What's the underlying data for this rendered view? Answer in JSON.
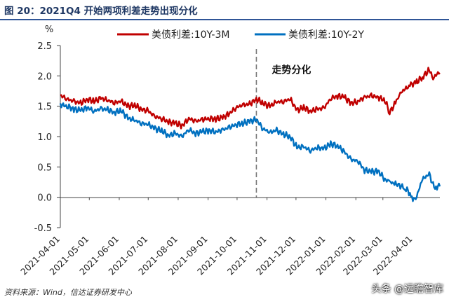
{
  "figure_title": "图 20：2021Q4 开始两项利差走势出现分化",
  "source": "资料来源：Wind，信达证券研发中心",
  "watermark": "头条 @远瞻智库",
  "chart_data": {
    "type": "line",
    "title": "",
    "ylabel": "%",
    "xlabel": "",
    "ylim": [
      -0.5,
      2.5
    ],
    "y_ticks": [
      -0.5,
      0.0,
      0.5,
      1.0,
      1.5,
      2.0,
      2.5
    ],
    "y_tick_labels": [
      "-0.5",
      "0.0",
      "0.5",
      "1.0",
      "1.5",
      "2.0",
      "2.5"
    ],
    "x_range": [
      "2021-04-01",
      "2022-04-29"
    ],
    "x_ticks": [
      "2021-04-01",
      "2021-05-01",
      "2021-06-01",
      "2021-07-01",
      "2021-08-01",
      "2021-09-01",
      "2021-10-01",
      "2021-11-01",
      "2021-12-01",
      "2022-01-01",
      "2022-02-01",
      "2022-03-01",
      "2022-04-01"
    ],
    "grid": false,
    "legend_position": "top",
    "series": [
      {
        "name": "美债利差:10Y-3M",
        "color": "#c00000",
        "points": [
          [
            "2021-04-01",
            1.68
          ],
          [
            "2021-04-08",
            1.62
          ],
          [
            "2021-04-15",
            1.58
          ],
          [
            "2021-04-22",
            1.55
          ],
          [
            "2021-04-29",
            1.62
          ],
          [
            "2021-05-06",
            1.58
          ],
          [
            "2021-05-13",
            1.63
          ],
          [
            "2021-05-20",
            1.6
          ],
          [
            "2021-05-27",
            1.56
          ],
          [
            "2021-06-03",
            1.58
          ],
          [
            "2021-06-10",
            1.5
          ],
          [
            "2021-06-17",
            1.52
          ],
          [
            "2021-06-24",
            1.45
          ],
          [
            "2021-07-01",
            1.42
          ],
          [
            "2021-07-08",
            1.33
          ],
          [
            "2021-07-15",
            1.3
          ],
          [
            "2021-07-22",
            1.24
          ],
          [
            "2021-07-29",
            1.22
          ],
          [
            "2021-08-05",
            1.18
          ],
          [
            "2021-08-12",
            1.3
          ],
          [
            "2021-08-19",
            1.25
          ],
          [
            "2021-08-26",
            1.28
          ],
          [
            "2021-09-02",
            1.3
          ],
          [
            "2021-09-09",
            1.29
          ],
          [
            "2021-09-16",
            1.31
          ],
          [
            "2021-09-23",
            1.38
          ],
          [
            "2021-09-30",
            1.48
          ],
          [
            "2021-10-07",
            1.52
          ],
          [
            "2021-10-14",
            1.53
          ],
          [
            "2021-10-21",
            1.62
          ],
          [
            "2021-10-28",
            1.55
          ],
          [
            "2021-11-04",
            1.5
          ],
          [
            "2021-11-11",
            1.57
          ],
          [
            "2021-11-18",
            1.58
          ],
          [
            "2021-11-25",
            1.62
          ],
          [
            "2021-12-02",
            1.43
          ],
          [
            "2021-12-09",
            1.48
          ],
          [
            "2021-12-16",
            1.42
          ],
          [
            "2021-12-23",
            1.45
          ],
          [
            "2021-12-30",
            1.47
          ],
          [
            "2022-01-06",
            1.63
          ],
          [
            "2022-01-13",
            1.67
          ],
          [
            "2022-01-20",
            1.65
          ],
          [
            "2022-01-27",
            1.55
          ],
          [
            "2022-02-03",
            1.58
          ],
          [
            "2022-02-10",
            1.65
          ],
          [
            "2022-02-17",
            1.67
          ],
          [
            "2022-02-24",
            1.65
          ],
          [
            "2022-03-03",
            1.6
          ],
          [
            "2022-03-08",
            1.4
          ],
          [
            "2022-03-14",
            1.55
          ],
          [
            "2022-03-18",
            1.7
          ],
          [
            "2022-03-24",
            1.78
          ],
          [
            "2022-03-30",
            1.85
          ],
          [
            "2022-04-05",
            1.9
          ],
          [
            "2022-04-11",
            1.98
          ],
          [
            "2022-04-18",
            2.1
          ],
          [
            "2022-04-22",
            1.95
          ],
          [
            "2022-04-25",
            2.03
          ],
          [
            "2022-04-29",
            2.05
          ]
        ]
      },
      {
        "name": "美债利差:10Y-2Y",
        "color": "#0070c0",
        "points": [
          [
            "2021-04-01",
            1.53
          ],
          [
            "2021-04-08",
            1.5
          ],
          [
            "2021-04-15",
            1.45
          ],
          [
            "2021-04-22",
            1.43
          ],
          [
            "2021-04-29",
            1.48
          ],
          [
            "2021-05-06",
            1.42
          ],
          [
            "2021-05-13",
            1.46
          ],
          [
            "2021-05-20",
            1.44
          ],
          [
            "2021-05-27",
            1.4
          ],
          [
            "2021-06-03",
            1.43
          ],
          [
            "2021-06-10",
            1.3
          ],
          [
            "2021-06-17",
            1.27
          ],
          [
            "2021-06-24",
            1.22
          ],
          [
            "2021-07-01",
            1.2
          ],
          [
            "2021-07-08",
            1.13
          ],
          [
            "2021-07-15",
            1.1
          ],
          [
            "2021-07-22",
            1.02
          ],
          [
            "2021-07-29",
            1.05
          ],
          [
            "2021-08-05",
            1.0
          ],
          [
            "2021-08-12",
            1.12
          ],
          [
            "2021-08-19",
            1.05
          ],
          [
            "2021-08-26",
            1.08
          ],
          [
            "2021-09-02",
            1.1
          ],
          [
            "2021-09-09",
            1.08
          ],
          [
            "2021-09-16",
            1.11
          ],
          [
            "2021-09-23",
            1.15
          ],
          [
            "2021-09-30",
            1.2
          ],
          [
            "2021-10-07",
            1.22
          ],
          [
            "2021-10-14",
            1.25
          ],
          [
            "2021-10-21",
            1.28
          ],
          [
            "2021-10-28",
            1.13
          ],
          [
            "2021-11-04",
            1.07
          ],
          [
            "2021-11-11",
            1.1
          ],
          [
            "2021-11-18",
            1.04
          ],
          [
            "2021-11-25",
            1.0
          ],
          [
            "2021-12-02",
            0.82
          ],
          [
            "2021-12-09",
            0.83
          ],
          [
            "2021-12-16",
            0.77
          ],
          [
            "2021-12-23",
            0.82
          ],
          [
            "2021-12-30",
            0.8
          ],
          [
            "2022-01-06",
            0.88
          ],
          [
            "2022-01-13",
            0.85
          ],
          [
            "2022-01-20",
            0.75
          ],
          [
            "2022-01-27",
            0.62
          ],
          [
            "2022-02-03",
            0.6
          ],
          [
            "2022-02-10",
            0.45
          ],
          [
            "2022-02-17",
            0.42
          ],
          [
            "2022-02-24",
            0.43
          ],
          [
            "2022-03-03",
            0.3
          ],
          [
            "2022-03-08",
            0.25
          ],
          [
            "2022-03-14",
            0.22
          ],
          [
            "2022-03-18",
            0.2
          ],
          [
            "2022-03-24",
            0.15
          ],
          [
            "2022-03-30",
            0.05
          ],
          [
            "2022-04-01",
            -0.05
          ],
          [
            "2022-04-05",
            0.02
          ],
          [
            "2022-04-11",
            0.3
          ],
          [
            "2022-04-18",
            0.38
          ],
          [
            "2022-04-22",
            0.2
          ],
          [
            "2022-04-25",
            0.17
          ],
          [
            "2022-04-29",
            0.18
          ]
        ]
      }
    ],
    "annotations": [
      {
        "text": "走势分化",
        "x": "2021-10-21",
        "y": 2.1
      }
    ],
    "marker_line": {
      "x": "2021-10-21",
      "style": "dashed"
    }
  }
}
